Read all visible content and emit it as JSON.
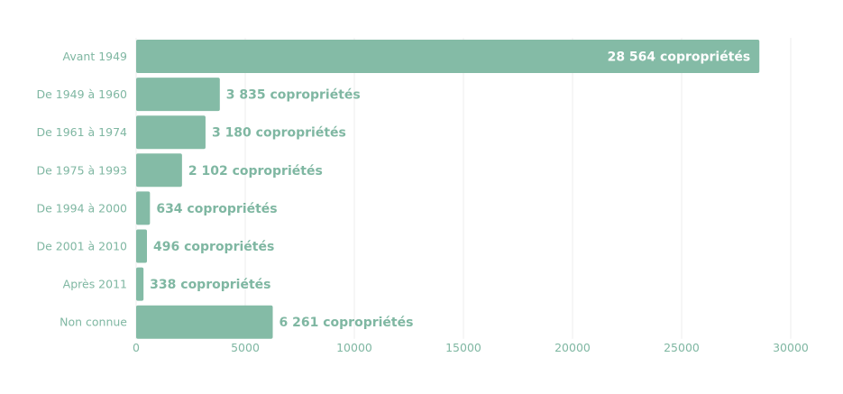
{
  "chart_data": {
    "type": "bar",
    "orientation": "horizontal",
    "categories": [
      "Avant 1949",
      "De 1949 à 1960",
      "De 1961 à 1974",
      "De 1975 à 1993",
      "De 1994 à 2000",
      "De 2001 à 2010",
      "Après 2011",
      "Non connue"
    ],
    "values": [
      28564,
      3835,
      3180,
      2102,
      634,
      496,
      338,
      6261
    ],
    "data_labels": [
      "28 564 copropriétés",
      "3 835 copropriétés",
      "3 180 copropriétés",
      "2 102 copropriétés",
      "634 copropriétés",
      "496 copropriétés",
      "338 copropriétés",
      "6 261 copropriétés"
    ],
    "xlim": [
      0,
      30000
    ],
    "xticks": [
      0,
      5000,
      10000,
      15000,
      20000,
      25000,
      30000
    ],
    "xtick_labels": [
      "0",
      "5000",
      "10000",
      "15000",
      "20000",
      "25000",
      "30000"
    ],
    "title": "",
    "xlabel": "",
    "ylabel": "",
    "grid": "vertical",
    "legend": "none",
    "colors": {
      "bar": "#84bba6",
      "label": "#7fb7a2",
      "label_inside": "#ffffff",
      "grid": "#ececec"
    }
  }
}
